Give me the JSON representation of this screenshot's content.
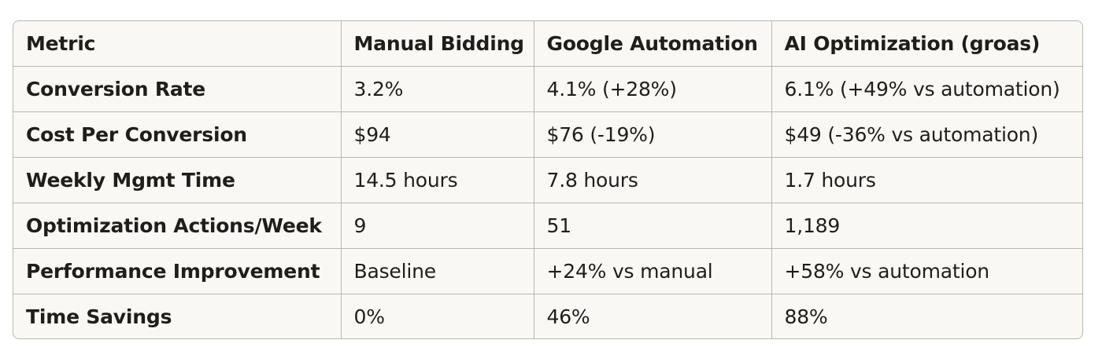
{
  "table": {
    "headers": [
      "Metric",
      "Manual Bidding",
      "Google Automation",
      "AI Optimization (groas)"
    ],
    "rows": [
      [
        "Conversion Rate",
        "3.2%",
        "4.1% (+28%)",
        "6.1% (+49% vs automation)"
      ],
      [
        "Cost Per Conversion",
        "$94",
        "$76 (-19%)",
        "$49 (-36% vs automation)"
      ],
      [
        "Weekly Mgmt Time",
        "14.5 hours",
        "7.8 hours",
        "1.7 hours"
      ],
      [
        "Optimization Actions/Week",
        "9",
        "51",
        "1,189"
      ],
      [
        "Performance Improvement",
        "Baseline",
        "+24% vs manual",
        "+58% vs automation"
      ],
      [
        "Time Savings",
        "0%",
        "46%",
        "88%"
      ]
    ]
  },
  "colors": {
    "background": "#f9f8f5",
    "border": "#b9b7b1",
    "text": "#1f1e1b"
  }
}
